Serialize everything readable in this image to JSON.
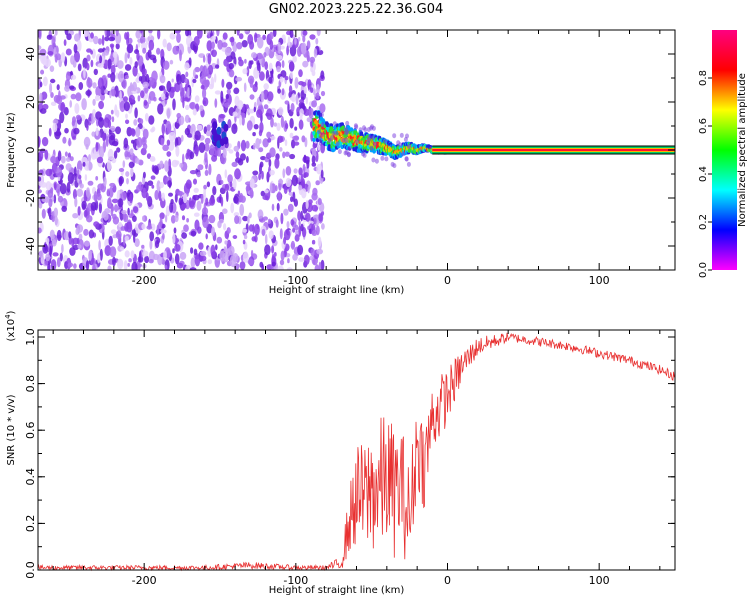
{
  "figure_title": "GN02.2023.225.22.36.G04",
  "colors": {
    "snr_line": "#e83030",
    "noise_palette": [
      "#6a1ed8",
      "#8b3fe8",
      "#a86cf0",
      "#c9a4f6",
      "#e6d4fb"
    ],
    "signal_palette": [
      "#2020e0",
      "#00a0ff",
      "#00e0e0",
      "#30e030",
      "#c8e000",
      "#ffa000",
      "#ff2020"
    ],
    "colorbar_stops": [
      "#ff00ff",
      "#0000ff",
      "#00ffff",
      "#00ff00",
      "#ffff00",
      "#ff0000",
      "#ff0080"
    ]
  },
  "chart_data": [
    {
      "type": "heatmap",
      "title": "",
      "xlabel": "Height of straight line (km)",
      "ylabel": "Frequency (Hz)",
      "xlim": [
        -270,
        150
      ],
      "ylim": [
        -50,
        50
      ],
      "x_ticks": [
        "-200",
        "-100",
        "0",
        "100"
      ],
      "y_ticks": [
        "-40",
        "-20",
        "0",
        "20",
        "40"
      ],
      "colorbar": {
        "label": "Normalized spectral amplitude",
        "range": [
          0,
          1
        ],
        "ticks": [
          "0.0",
          "0.2",
          "0.4",
          "0.6",
          "0.8"
        ]
      },
      "noise_region_x": [
        -270,
        -82
      ],
      "signal_track": {
        "x": [
          -85,
          -80,
          -75,
          -70,
          -65,
          -60,
          -55,
          -50,
          -45,
          -40,
          -35,
          -30,
          -25,
          -20,
          -15,
          -10,
          -5,
          0,
          20,
          60,
          100,
          150
        ],
        "frequency": [
          10,
          6,
          5,
          6,
          5,
          4,
          3,
          3,
          2,
          1,
          -1,
          0,
          1,
          0,
          1,
          0,
          0,
          0,
          0,
          0,
          0,
          0
        ]
      },
      "steady_line_x": [
        -10,
        150
      ],
      "steady_line_frequency": 0
    },
    {
      "type": "line",
      "title": "",
      "xlabel": "Height of straight line (km)",
      "ylabel": "SNR (10 * v/v)",
      "y_multiplier": "(x10",
      "y_multiplier_exponent": "4",
      "y_multiplier_close": ")",
      "xlim": [
        -270,
        150
      ],
      "ylim": [
        0,
        1.03
      ],
      "x_ticks": [
        "-200",
        "-100",
        "0",
        "100"
      ],
      "y_ticks": [
        "0.0",
        "0.2",
        "0.4",
        "0.6",
        "0.8",
        "1.0"
      ],
      "series": [
        {
          "x": [
            -270,
            -240,
            -200,
            -160,
            -130,
            -100,
            -80,
            -70,
            -65,
            -60,
            -55,
            -50,
            -45,
            -40,
            -35,
            -30,
            -25,
            -20,
            -15,
            -10,
            -5,
            0,
            10,
            20,
            30,
            40,
            50,
            60,
            80,
            100,
            120,
            140,
            150
          ],
          "y": [
            0.01,
            0.01,
            0.01,
            0.01,
            0.02,
            0.01,
            0.01,
            0.03,
            0.2,
            0.32,
            0.3,
            0.35,
            0.35,
            0.4,
            0.33,
            0.36,
            0.2,
            0.55,
            0.45,
            0.65,
            0.7,
            0.75,
            0.88,
            0.96,
            0.98,
            1.0,
            0.99,
            0.98,
            0.96,
            0.93,
            0.9,
            0.86,
            0.83
          ],
          "y_spread": [
            0.01,
            0.01,
            0.01,
            0.01,
            0.015,
            0.01,
            0.01,
            0.03,
            0.14,
            0.22,
            0.25,
            0.28,
            0.3,
            0.3,
            0.28,
            0.26,
            0.25,
            0.2,
            0.2,
            0.16,
            0.14,
            0.12,
            0.07,
            0.04,
            0.03,
            0.02,
            0.02,
            0.02,
            0.02,
            0.02,
            0.02,
            0.02,
            0.02
          ]
        }
      ]
    }
  ]
}
